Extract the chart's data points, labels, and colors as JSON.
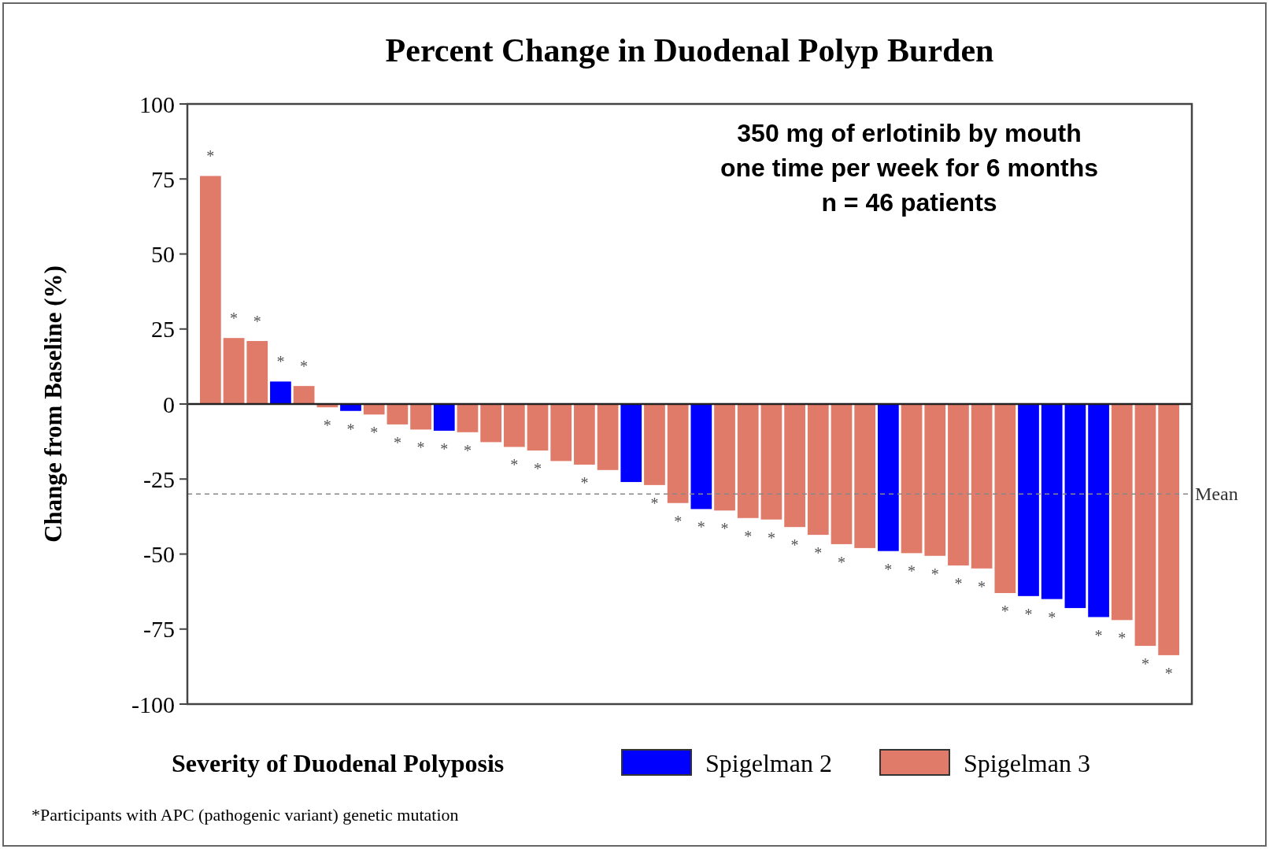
{
  "chart_data": {
    "type": "bar",
    "title": "Percent Change in Duodenal Polyp Burden",
    "ylabel": "Change from Baseline (%)",
    "legend_title": "Severity of Duodenal Polyposis",
    "categories": [
      null,
      null,
      null,
      null,
      null,
      null,
      null,
      null,
      null,
      null,
      null,
      null,
      null,
      null,
      null,
      null,
      null,
      null,
      null,
      null,
      null,
      null,
      null,
      null,
      null,
      null,
      null,
      null,
      null,
      null,
      null,
      null,
      null,
      null,
      null,
      null,
      null,
      null,
      null,
      null,
      null,
      null
    ],
    "series": [
      {
        "name": "Spigelman 2",
        "color": "#0000ff",
        "values": [
          null,
          null,
          null,
          7.5,
          null,
          null,
          -2.3,
          null,
          null,
          null,
          -8.9,
          null,
          null,
          null,
          null,
          null,
          null,
          null,
          -26,
          null,
          null,
          -35,
          null,
          null,
          null,
          null,
          null,
          null,
          null,
          -49,
          null,
          null,
          null,
          null,
          null,
          -64,
          -65,
          -68,
          -71,
          null,
          null,
          null
        ],
        "value_labels": [
          null,
          null,
          null,
          "*",
          null,
          null,
          "*",
          null,
          null,
          null,
          "*",
          null,
          null,
          null,
          null,
          null,
          null,
          null,
          null,
          null,
          null,
          "*",
          null,
          null,
          null,
          null,
          null,
          null,
          null,
          "*",
          null,
          null,
          null,
          null,
          null,
          "*",
          "*",
          null,
          "*",
          null,
          null,
          null
        ]
      },
      {
        "name": "Spigelman 3",
        "color": "#e07b6a",
        "values": [
          76,
          22,
          21,
          null,
          6,
          -1.1,
          null,
          -3.5,
          -6.8,
          -8.5,
          null,
          -9.4,
          -12.7,
          -14.3,
          -15.5,
          -19,
          -20.2,
          -22,
          null,
          -27,
          -33,
          null,
          -35.5,
          -38,
          -38.5,
          -41,
          -43.6,
          -46.7,
          -48,
          null,
          -49.7,
          -50.6,
          -53.8,
          -54.8,
          -63,
          null,
          null,
          null,
          null,
          -72,
          -80.6,
          -83.7
        ],
        "value_labels": [
          "*",
          "*",
          "*",
          null,
          "*",
          "*",
          null,
          "*",
          "*",
          "*",
          null,
          "*",
          null,
          "*",
          "*",
          null,
          "*",
          null,
          null,
          "*",
          "*",
          null,
          "*",
          "*",
          "*",
          "*",
          "*",
          "*",
          null,
          null,
          "*",
          "*",
          "*",
          "*",
          "*",
          null,
          null,
          null,
          null,
          "*",
          "*",
          "*"
        ]
      }
    ],
    "ylim": [
      -100,
      100
    ],
    "yticks": [
      -100,
      -75,
      -50,
      -25,
      0,
      25,
      50,
      75,
      100
    ],
    "ref_lines": [
      {
        "axis": "y",
        "value": -30,
        "label": "Mean",
        "color": "#888888",
        "line_style": "dashed"
      }
    ],
    "annotations": [
      "350 mg of erlotinib by mouth",
      "one time per week for 6 months",
      "n = 46 patients",
      "*Participants with APC (pathogenic variant) genetic mutation"
    ],
    "legend": "bottom"
  }
}
